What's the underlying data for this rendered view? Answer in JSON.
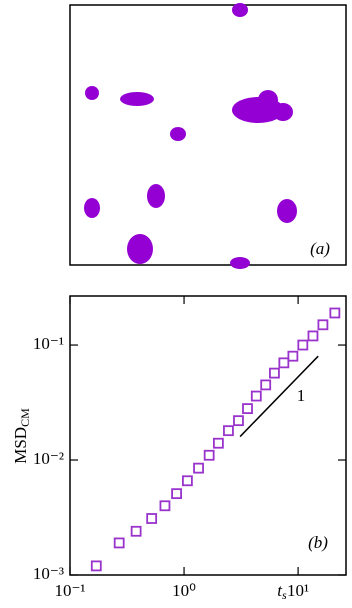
{
  "snapshot": {
    "label": "(a)",
    "color": "#9400d3"
  },
  "chart_data": {
    "type": "scatter",
    "panel_label": "(b)",
    "x_label": {
      "text": "t",
      "subscript": "s"
    },
    "y_label": {
      "text": "MSD",
      "subscript": "CM"
    },
    "log_x": true,
    "log_y": true,
    "marker": "open-square",
    "xlim": [
      0.1,
      26.3
    ],
    "ylim": [
      0.001,
      0.267
    ],
    "xticks": [
      {
        "value": 0.1,
        "label": "10⁻¹"
      },
      {
        "value": 1,
        "label": "10⁰"
      },
      {
        "value": 10,
        "label": "10¹"
      }
    ],
    "yticks": [
      {
        "value": 0.001,
        "label": "10⁻³"
      },
      {
        "value": 0.01,
        "label": "10⁻²"
      },
      {
        "value": 0.1,
        "label": "10⁻¹"
      }
    ],
    "series": [
      {
        "name": "MSD",
        "color": "#9933cc",
        "x": [
          0.17,
          0.27,
          0.38,
          0.52,
          0.68,
          0.86,
          1.07,
          1.34,
          1.66,
          2.0,
          2.45,
          3.0,
          3.6,
          4.3,
          5.2,
          6.2,
          7.5,
          9.0,
          11.0,
          13.5,
          16.5,
          21.0
        ],
        "values": [
          0.0012,
          0.0019,
          0.0024,
          0.0031,
          0.004,
          0.0051,
          0.0066,
          0.0085,
          0.011,
          0.014,
          0.018,
          0.022,
          0.028,
          0.036,
          0.045,
          0.057,
          0.07,
          0.08,
          0.1,
          0.12,
          0.15,
          0.19
        ]
      }
    ],
    "guide_line": {
      "label": "1",
      "x": [
        3.1,
        15
      ],
      "values": [
        0.016,
        0.08
      ]
    }
  }
}
